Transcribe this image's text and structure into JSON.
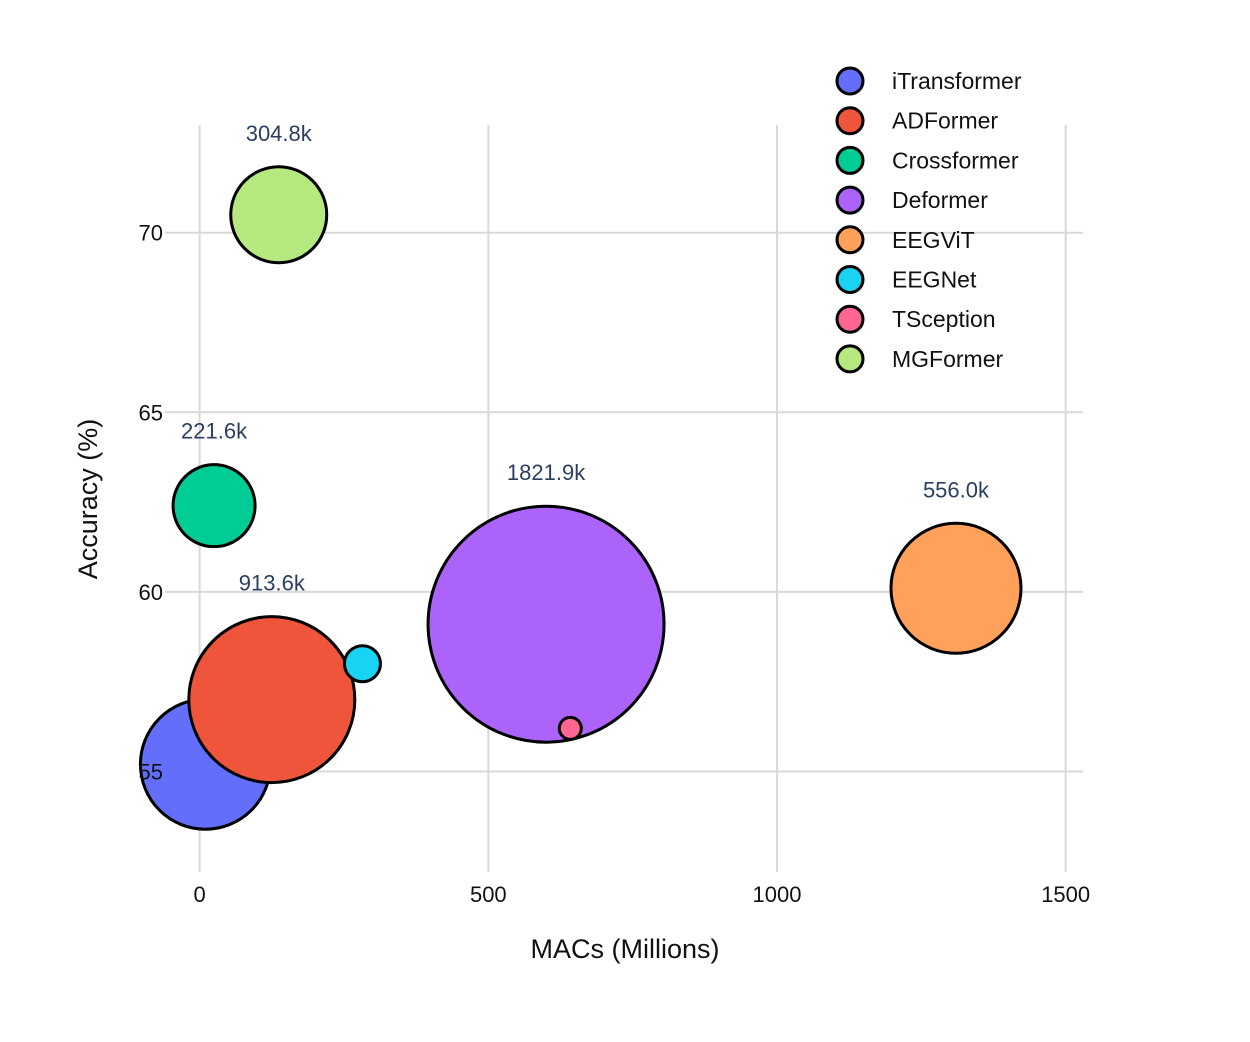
{
  "chart_data": {
    "type": "scatter",
    "xlabel": "MACs (Millions)",
    "ylabel": "Accuracy (%)",
    "xlim": [
      -60,
      1530
    ],
    "ylim": [
      52.2,
      73
    ],
    "x_ticks": [
      0,
      500,
      1000,
      1500
    ],
    "y_ticks": [
      55,
      60,
      65,
      70
    ],
    "grid": true,
    "legend_position": "top-right",
    "series": [
      {
        "name": "iTransformer",
        "x": 10,
        "y": 55.2,
        "color": "#636efa"
      },
      {
        "name": "ADFormer",
        "x": 125,
        "y": 57.0,
        "size_label": "913.6k",
        "color": "#ef553b"
      },
      {
        "name": "Crossformer",
        "x": 25,
        "y": 62.4,
        "size_label": "221.6k",
        "color": "#00cc96"
      },
      {
        "name": "Deformer",
        "x": 600,
        "y": 59.1,
        "size_label": "1821.9k",
        "color": "#ab63fa"
      },
      {
        "name": "EEGViT",
        "x": 1310,
        "y": 60.1,
        "size_label": "556.0k",
        "color": "#ffa15a"
      },
      {
        "name": "EEGNet",
        "x": 282,
        "y": 58.0,
        "color": "#19d3f3"
      },
      {
        "name": "TSception",
        "x": 642,
        "y": 56.2,
        "color": "#ff6692"
      },
      {
        "name": "MGFormer",
        "x": 137,
        "y": 70.5,
        "size_label": "304.8k",
        "color": "#b6e880"
      }
    ]
  }
}
